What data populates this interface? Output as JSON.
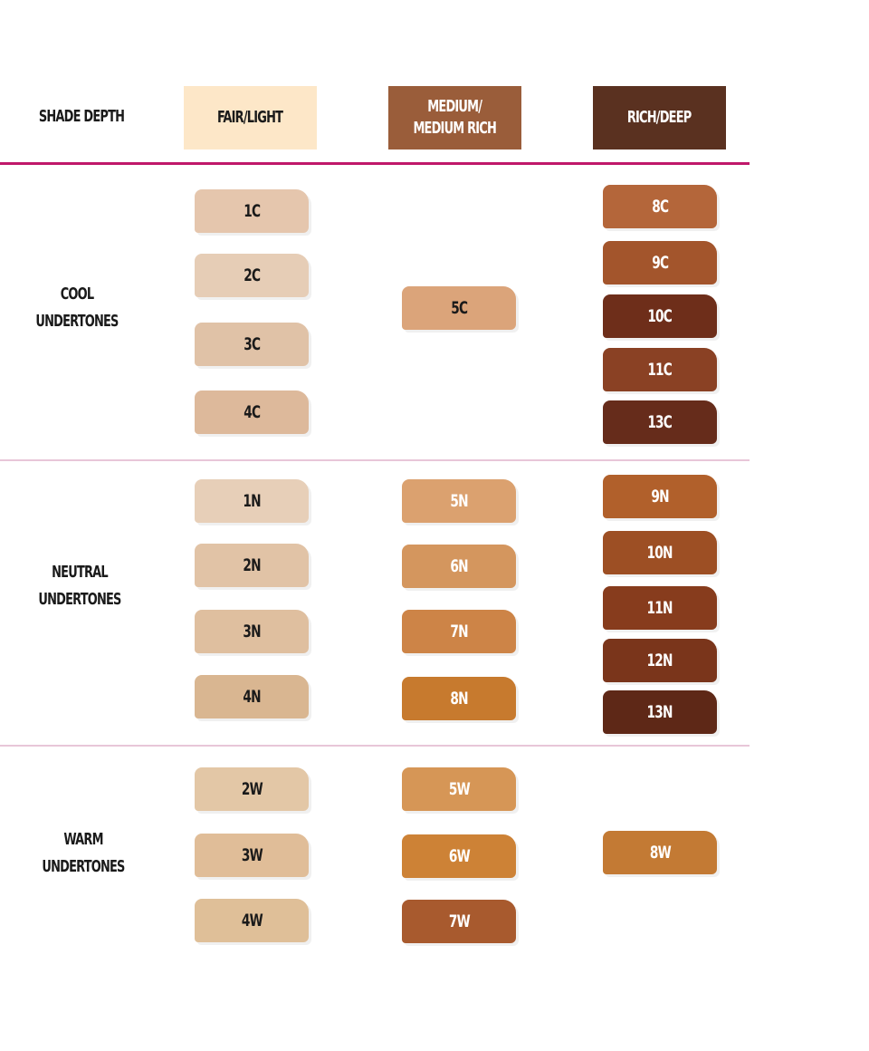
{
  "header": {
    "label": "SHADE DEPTH",
    "columns": [
      {
        "label_line1": "FAIR/LIGHT",
        "label_line2": "",
        "color": "#fde7c8",
        "text_color": "#1a1a1a"
      },
      {
        "label_line1": "MEDIUM/",
        "label_line2": "MEDIUM RICH",
        "color": "#9a5d3a",
        "text_color": "#ffffff"
      },
      {
        "label_line1": "RICH/DEEP",
        "label_line2": "",
        "color": "#5a3120",
        "text_color": "#ffffff"
      }
    ]
  },
  "colors": {
    "header_rule": "#c0186a",
    "row_rule": "#e8c6d8"
  },
  "rows": [
    {
      "label_line1": "COOL",
      "label_line2": "UNDERTONES"
    },
    {
      "label_line1": "NEUTRAL",
      "label_line2": "UNDERTONES"
    },
    {
      "label_line1": "WARM",
      "label_line2": "UNDERTONES"
    }
  ],
  "swatches": [
    {
      "name": "1C",
      "col": 0,
      "color": "#e5c6ad",
      "text": "#1a1a1a"
    },
    {
      "name": "2C",
      "col": 0,
      "color": "#e6cdb6",
      "text": "#1a1a1a"
    },
    {
      "name": "3C",
      "col": 0,
      "color": "#e0c2a7",
      "text": "#1a1a1a"
    },
    {
      "name": "4C",
      "col": 0,
      "color": "#ddb99b",
      "text": "#1a1a1a"
    },
    {
      "name": "5C",
      "col": 1,
      "color": "#dba47a",
      "text": "#1a1a1a"
    },
    {
      "name": "8C",
      "col": 2,
      "color": "#b4663a",
      "text": "#ffffff"
    },
    {
      "name": "9C",
      "col": 2,
      "color": "#a3552c",
      "text": "#ffffff"
    },
    {
      "name": "10C",
      "col": 2,
      "color": "#6e2e1a",
      "text": "#ffffff"
    },
    {
      "name": "11C",
      "col": 2,
      "color": "#8a4124",
      "text": "#ffffff"
    },
    {
      "name": "13C",
      "col": 2,
      "color": "#662c1b",
      "text": "#ffffff"
    },
    {
      "name": "1N",
      "col": 0,
      "color": "#e7cfb8",
      "text": "#1a1a1a"
    },
    {
      "name": "2N",
      "col": 0,
      "color": "#e1c3a6",
      "text": "#1a1a1a"
    },
    {
      "name": "3N",
      "col": 0,
      "color": "#dfbf9f",
      "text": "#1a1a1a"
    },
    {
      "name": "4N",
      "col": 0,
      "color": "#d9b691",
      "text": "#1a1a1a"
    },
    {
      "name": "5N",
      "col": 1,
      "color": "#dba16f",
      "text": "#ffffff"
    },
    {
      "name": "6N",
      "col": 1,
      "color": "#d4965e",
      "text": "#ffffff"
    },
    {
      "name": "7N",
      "col": 1,
      "color": "#cd8447",
      "text": "#ffffff"
    },
    {
      "name": "8N",
      "col": 1,
      "color": "#c77a2e",
      "text": "#ffffff"
    },
    {
      "name": "9N",
      "col": 2,
      "color": "#b1602b",
      "text": "#ffffff"
    },
    {
      "name": "10N",
      "col": 2,
      "color": "#9d4f24",
      "text": "#ffffff"
    },
    {
      "name": "11N",
      "col": 2,
      "color": "#873c1d",
      "text": "#ffffff"
    },
    {
      "name": "12N",
      "col": 2,
      "color": "#7a351b",
      "text": "#ffffff"
    },
    {
      "name": "13N",
      "col": 2,
      "color": "#5e2817",
      "text": "#ffffff"
    },
    {
      "name": "2W",
      "col": 0,
      "color": "#e3c7a6",
      "text": "#1a1a1a"
    },
    {
      "name": "3W",
      "col": 0,
      "color": "#e0bd98",
      "text": "#1a1a1a"
    },
    {
      "name": "4W",
      "col": 0,
      "color": "#dfbf98",
      "text": "#1a1a1a"
    },
    {
      "name": "5W",
      "col": 1,
      "color": "#d69656",
      "text": "#ffffff"
    },
    {
      "name": "6W",
      "col": 1,
      "color": "#cd8236",
      "text": "#ffffff"
    },
    {
      "name": "7W",
      "col": 1,
      "color": "#a85a2e",
      "text": "#ffffff"
    },
    {
      "name": "8W",
      "col": 2,
      "color": "#c37a34",
      "text": "#ffffff"
    }
  ]
}
